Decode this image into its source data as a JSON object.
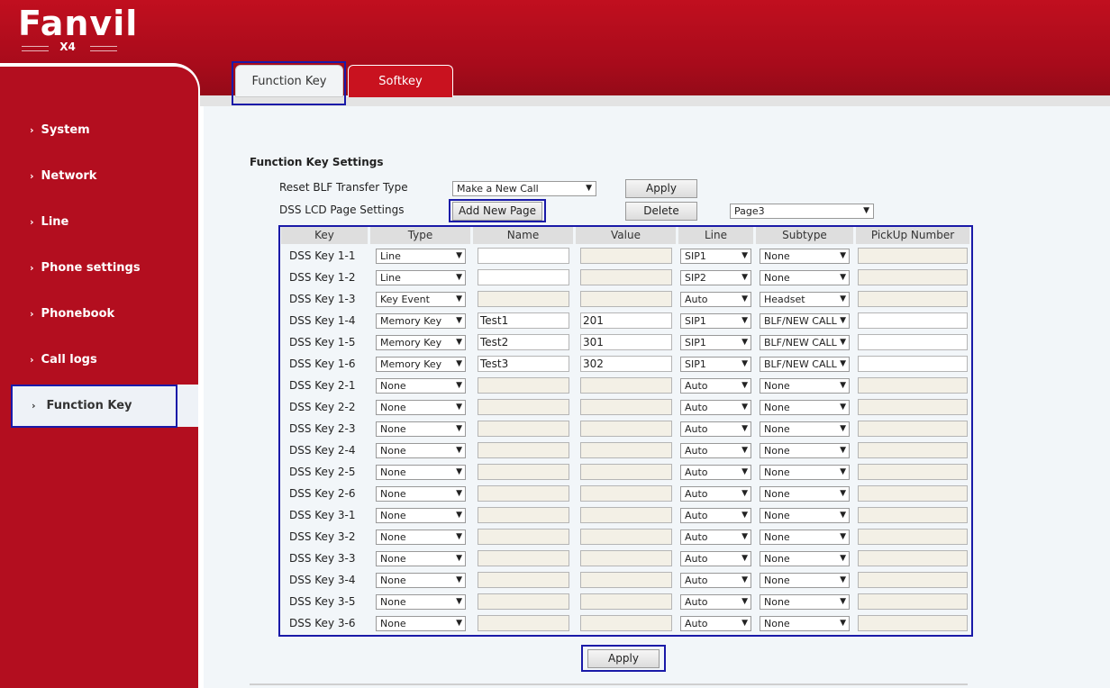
{
  "header": {
    "brand": "Fanvil",
    "model": "X4"
  },
  "tabs": [
    {
      "label": "Function Key"
    },
    {
      "label": "Softkey"
    }
  ],
  "sidebar": {
    "items": [
      {
        "label": "System"
      },
      {
        "label": "Network"
      },
      {
        "label": "Line"
      },
      {
        "label": "Phone settings"
      },
      {
        "label": "Phonebook"
      },
      {
        "label": "Call logs"
      },
      {
        "label": "Function Key"
      }
    ]
  },
  "settings": {
    "title": "Function Key Settings",
    "reset_blf_label": "Reset BLF Transfer Type",
    "reset_blf_value": "Make a New Call",
    "apply_label": "Apply",
    "dss_lcd_label": "DSS LCD Page Settings",
    "add_page_label": "Add New Page",
    "delete_label": "Delete",
    "page_value": "Page3"
  },
  "table": {
    "headers": [
      "Key",
      "Type",
      "Name",
      "Value",
      "Line",
      "Subtype",
      "PickUp Number"
    ],
    "rows": [
      {
        "key": "DSS Key 1-1",
        "type": "Line",
        "name": "",
        "value": "",
        "line": "SIP1",
        "subtype": "None",
        "pickup": "",
        "name_en": true,
        "value_en": false,
        "pickup_en": false
      },
      {
        "key": "DSS Key 1-2",
        "type": "Line",
        "name": "",
        "value": "",
        "line": "SIP2",
        "subtype": "None",
        "pickup": "",
        "name_en": true,
        "value_en": false,
        "pickup_en": false
      },
      {
        "key": "DSS Key 1-3",
        "type": "Key Event",
        "name": "",
        "value": "",
        "line": "Auto",
        "subtype": "Headset",
        "pickup": "",
        "name_en": false,
        "value_en": false,
        "pickup_en": false
      },
      {
        "key": "DSS Key 1-4",
        "type": "Memory Key",
        "name": "Test1",
        "value": "201",
        "line": "SIP1",
        "subtype": "BLF/NEW CALL",
        "pickup": "",
        "name_en": true,
        "value_en": true,
        "pickup_en": true
      },
      {
        "key": "DSS Key 1-5",
        "type": "Memory Key",
        "name": "Test2",
        "value": "301",
        "line": "SIP1",
        "subtype": "BLF/NEW CALL",
        "pickup": "",
        "name_en": true,
        "value_en": true,
        "pickup_en": true
      },
      {
        "key": "DSS Key 1-6",
        "type": "Memory Key",
        "name": "Test3",
        "value": "302",
        "line": "SIP1",
        "subtype": "BLF/NEW CALL",
        "pickup": "",
        "name_en": true,
        "value_en": true,
        "pickup_en": true
      },
      {
        "key": "DSS Key 2-1",
        "type": "None",
        "name": "",
        "value": "",
        "line": "Auto",
        "subtype": "None",
        "pickup": "",
        "name_en": false,
        "value_en": false,
        "pickup_en": false
      },
      {
        "key": "DSS Key 2-2",
        "type": "None",
        "name": "",
        "value": "",
        "line": "Auto",
        "subtype": "None",
        "pickup": "",
        "name_en": false,
        "value_en": false,
        "pickup_en": false
      },
      {
        "key": "DSS Key 2-3",
        "type": "None",
        "name": "",
        "value": "",
        "line": "Auto",
        "subtype": "None",
        "pickup": "",
        "name_en": false,
        "value_en": false,
        "pickup_en": false
      },
      {
        "key": "DSS Key 2-4",
        "type": "None",
        "name": "",
        "value": "",
        "line": "Auto",
        "subtype": "None",
        "pickup": "",
        "name_en": false,
        "value_en": false,
        "pickup_en": false
      },
      {
        "key": "DSS Key 2-5",
        "type": "None",
        "name": "",
        "value": "",
        "line": "Auto",
        "subtype": "None",
        "pickup": "",
        "name_en": false,
        "value_en": false,
        "pickup_en": false
      },
      {
        "key": "DSS Key 2-6",
        "type": "None",
        "name": "",
        "value": "",
        "line": "Auto",
        "subtype": "None",
        "pickup": "",
        "name_en": false,
        "value_en": false,
        "pickup_en": false
      },
      {
        "key": "DSS Key 3-1",
        "type": "None",
        "name": "",
        "value": "",
        "line": "Auto",
        "subtype": "None",
        "pickup": "",
        "name_en": false,
        "value_en": false,
        "pickup_en": false
      },
      {
        "key": "DSS Key 3-2",
        "type": "None",
        "name": "",
        "value": "",
        "line": "Auto",
        "subtype": "None",
        "pickup": "",
        "name_en": false,
        "value_en": false,
        "pickup_en": false
      },
      {
        "key": "DSS Key 3-3",
        "type": "None",
        "name": "",
        "value": "",
        "line": "Auto",
        "subtype": "None",
        "pickup": "",
        "name_en": false,
        "value_en": false,
        "pickup_en": false
      },
      {
        "key": "DSS Key 3-4",
        "type": "None",
        "name": "",
        "value": "",
        "line": "Auto",
        "subtype": "None",
        "pickup": "",
        "name_en": false,
        "value_en": false,
        "pickup_en": false
      },
      {
        "key": "DSS Key 3-5",
        "type": "None",
        "name": "",
        "value": "",
        "line": "Auto",
        "subtype": "None",
        "pickup": "",
        "name_en": false,
        "value_en": false,
        "pickup_en": false
      },
      {
        "key": "DSS Key 3-6",
        "type": "None",
        "name": "",
        "value": "",
        "line": "Auto",
        "subtype": "None",
        "pickup": "",
        "name_en": false,
        "value_en": false,
        "pickup_en": false
      }
    ]
  },
  "footer": {
    "apply_label": "Apply"
  },
  "colors": {
    "brand_red": "#b30e1f",
    "highlight_blue": "#1a1aa8"
  },
  "icons": {
    "nav_chevron": "chevron-right-icon",
    "select_arrow": "dropdown-arrow-icon"
  }
}
